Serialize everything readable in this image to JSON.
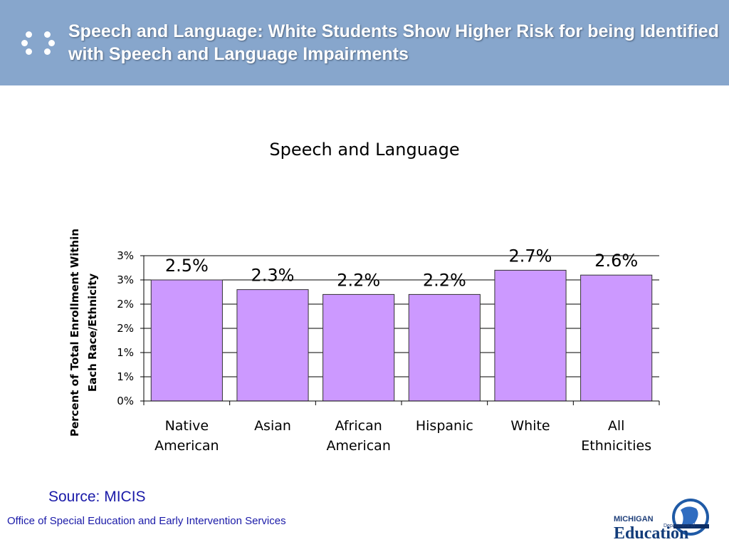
{
  "slide": {
    "title": "Speech and Language: White Students Show Higher Risk for being Identified with Speech and Language Impairments",
    "source": "Source: MICIS",
    "footer": "Office of Special Education and Early Intervention Services"
  },
  "logo": {
    "line1": "MICHIGAN",
    "line2": "Department of",
    "line3": "Education"
  },
  "colors": {
    "header": "#87a6cc",
    "bar_fill": "#cc99ff",
    "bar_stroke": "#333333",
    "text_blue": "#1a1aa8"
  },
  "chart_data": {
    "type": "bar",
    "title": "Speech and Language",
    "ylabel": "Percent of Total Enrollment Within Each Race/Ethnicity",
    "xlabel": "",
    "categories": [
      [
        "Native",
        "American"
      ],
      [
        "Asian"
      ],
      [
        "African",
        "American"
      ],
      [
        "Hispanic"
      ],
      [
        "White"
      ],
      [
        "All",
        "Ethnicities"
      ]
    ],
    "values": [
      2.5,
      2.3,
      2.2,
      2.2,
      2.7,
      2.6
    ],
    "data_labels": [
      "2.5%",
      "2.3%",
      "2.2%",
      "2.2%",
      "2.7%",
      "2.6%"
    ],
    "ylim": [
      0,
      3
    ],
    "yticks": [
      0,
      0.5,
      1,
      1.5,
      2,
      2.5,
      3
    ],
    "ytick_labels": [
      "0%",
      "1%",
      "1%",
      "2%",
      "2%",
      "3%",
      "3%"
    ],
    "grid": true,
    "legend": "none"
  }
}
